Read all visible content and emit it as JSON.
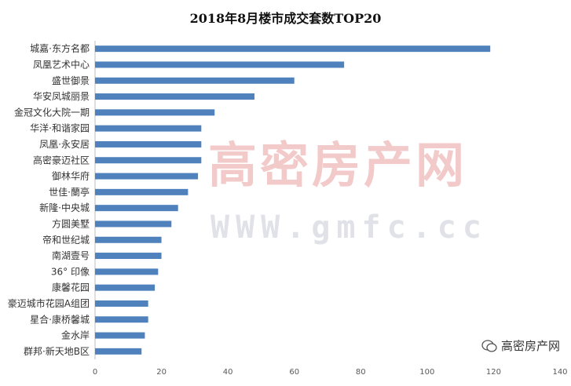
{
  "chart_data": {
    "type": "bar",
    "orientation": "horizontal",
    "title": "2018年8月楼市成交套数TOP20",
    "categories": [
      "城嘉·东方名都",
      "凤凰艺术中心",
      "盛世御景",
      "华安凤城丽景",
      "金冠文化大院一期",
      "华洋·和谐家园",
      "凤凰·永安居",
      "高密豪迈社区",
      "御林华府",
      "世佳·蘭亭",
      "新隆·中央城",
      "方圆美墅",
      "帝和世纪城",
      "南湖壹号",
      "36° 印像",
      "康馨花园",
      "豪迈城市花园A组团",
      "星合·康桥馨城",
      "金水岸",
      "群邦·新天地B区"
    ],
    "values": [
      119,
      75,
      60,
      48,
      36,
      32,
      32,
      32,
      31,
      28,
      25,
      23,
      20,
      20,
      19,
      18,
      16,
      16,
      15,
      14
    ],
    "xlim": [
      0,
      140
    ],
    "xticks": [
      0,
      20,
      40,
      60,
      80,
      100,
      120,
      140
    ],
    "grid": false,
    "bar_color": "#4f81bd"
  },
  "watermark": {
    "name": "高密房产网",
    "url": "WWW.gmfc.cc"
  },
  "footer": {
    "text": "高密房产网",
    "icon": "wechat-icon"
  }
}
